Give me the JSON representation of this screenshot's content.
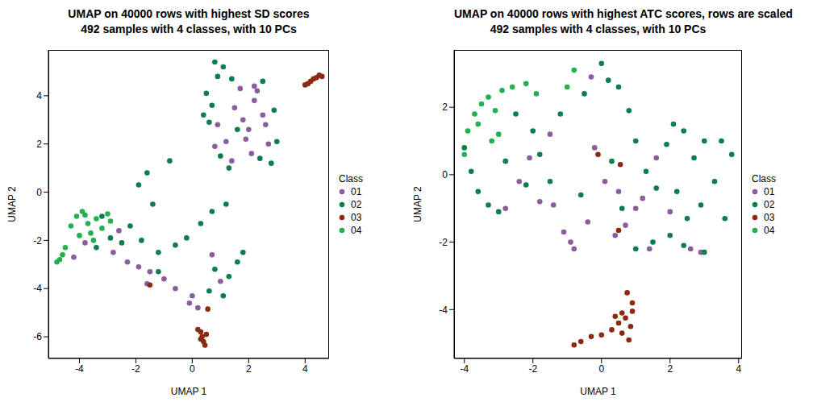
{
  "chart_data": [
    {
      "type": "scatter",
      "title": "UMAP on 40000 rows with highest SD scores",
      "subtitle": "492 samples with 4 classes, with 10 PCs",
      "x_label": "UMAP 1",
      "y_label": "UMAP 2",
      "xlim": [
        -5.1,
        4.85
      ],
      "ylim": [
        -6.9,
        5.9
      ],
      "xticks": [
        -4,
        -2,
        0,
        2,
        4
      ],
      "yticks": [
        -6,
        -4,
        -2,
        0,
        2,
        4
      ],
      "legend": "right",
      "legend_title": "Class",
      "marker": "circle",
      "series": [
        {
          "name": "01",
          "color": "#8B5C9E",
          "x": [
            1.5,
            1.8,
            2.0,
            2.2,
            2.5,
            2.7,
            1.2,
            0.8,
            2.3,
            1.7,
            2.6,
            1.9,
            0.9,
            1.4,
            2.1,
            -4.2,
            -3.8,
            -2.8,
            -2.3,
            -1.9,
            -1.5,
            -1.0,
            -2.6,
            -0.6,
            0.0,
            0.2,
            -0.1,
            0.7,
            -1.6,
            1.0,
            2.2
          ],
          "y": [
            3.5,
            3.0,
            2.6,
            3.8,
            3.2,
            2.0,
            2.1,
            1.9,
            4.2,
            4.3,
            2.8,
            2.2,
            2.8,
            1.3,
            1.6,
            -2.7,
            -2.1,
            -2.5,
            -2.9,
            -3.1,
            -3.3,
            -3.6,
            -1.6,
            -4.0,
            -4.3,
            -4.8,
            -4.6,
            -2.6,
            -3.8,
            -3.7,
            4.4
          ]
        },
        {
          "name": "02",
          "color": "#0A7E4E",
          "x": [
            0.5,
            0.7,
            0.9,
            1.1,
            0.8,
            1.4,
            0.6,
            0.4,
            1.3,
            1.0,
            2.4,
            2.8,
            3.0,
            2.9,
            2.5,
            1.6,
            -0.8,
            -1.6,
            -1.9,
            -1.4,
            -2.9,
            -3.4,
            -2.5,
            -1.8,
            -1.2,
            -0.6,
            -0.2,
            0.3,
            0.7,
            1.2,
            -1.2,
            0.8,
            1.3,
            1.6,
            1.8,
            0.6,
            1.1,
            -3.2,
            -2.2
          ],
          "y": [
            4.1,
            3.6,
            4.8,
            5.2,
            5.4,
            4.7,
            2.9,
            3.2,
            1.0,
            1.5,
            1.4,
            1.2,
            2.1,
            3.4,
            4.6,
            2.6,
            1.3,
            0.8,
            0.3,
            -0.5,
            -1.9,
            -2.3,
            -2.1,
            -2.0,
            -2.5,
            -2.2,
            -1.9,
            -1.3,
            -0.8,
            -0.5,
            -3.3,
            -3.2,
            -3.5,
            -2.9,
            -2.5,
            -4.1,
            -4.3,
            -1.0,
            -1.4
          ]
        },
        {
          "name": "03",
          "color": "#8B2A10",
          "x": [
            4.0,
            4.2,
            4.4,
            4.5,
            4.6,
            4.3,
            4.1,
            0.3,
            0.35,
            0.4,
            0.45,
            0.3,
            0.5,
            0.2,
            0.55,
            -1.5
          ],
          "y": [
            4.45,
            4.6,
            4.75,
            4.85,
            4.8,
            4.7,
            4.5,
            -5.8,
            -6.0,
            -6.2,
            -6.35,
            -6.1,
            -5.9,
            -5.7,
            -4.85,
            -3.85
          ]
        },
        {
          "name": "04",
          "color": "#22B14C",
          "x": [
            -4.8,
            -4.6,
            -4.5,
            -4.3,
            -4.1,
            -3.9,
            -3.7,
            -3.6,
            -3.4,
            -3.2,
            -3.0,
            -3.5,
            -4.0,
            -3.8,
            -2.9,
            -4.7
          ],
          "y": [
            -2.9,
            -2.6,
            -2.3,
            -1.4,
            -1.0,
            -0.8,
            -1.3,
            -1.7,
            -1.1,
            -1.5,
            -0.9,
            -2.0,
            -1.8,
            -0.95,
            -1.2,
            -2.8
          ]
        }
      ]
    },
    {
      "type": "scatter",
      "title": "UMAP on 40000 rows with highest ATC scores, rows are scaled",
      "subtitle": "492 samples with 4 classes, with 10 PCs",
      "x_label": "UMAP 1",
      "y_label": "UMAP 2",
      "xlim": [
        -4.3,
        4.1
      ],
      "ylim": [
        -5.45,
        3.7
      ],
      "xticks": [
        -4,
        -2,
        0,
        2,
        4
      ],
      "yticks": [
        -4,
        -2,
        0,
        2
      ],
      "legend": "right",
      "legend_title": "Class",
      "marker": "circle",
      "series": [
        {
          "name": "01",
          "color": "#8B5C9E",
          "x": [
            -2.8,
            -2.4,
            -1.8,
            -1.4,
            -1.1,
            -0.9,
            -0.8,
            -0.4,
            -0.2,
            0.1,
            0.5,
            0.7,
            1.0,
            1.2,
            1.6,
            2.0,
            2.6,
            2.9,
            -1.5,
            -0.3,
            0.4,
            -2.1,
            1.4
          ],
          "y": [
            -1.0,
            -0.2,
            -0.8,
            -0.9,
            -1.7,
            -2.0,
            -2.2,
            -1.4,
            0.8,
            -0.2,
            -0.5,
            -1.5,
            -1.0,
            -0.7,
            0.5,
            -1.1,
            -2.2,
            -2.3,
            1.2,
            2.9,
            -1.8,
            0.5,
            -2.2
          ]
        },
        {
          "name": "02",
          "color": "#0A7E4E",
          "x": [
            -4.0,
            -3.8,
            -3.6,
            -3.3,
            -3.0,
            -2.8,
            -2.5,
            -2.0,
            -1.8,
            -1.5,
            -1.2,
            -0.5,
            0.0,
            0.2,
            0.5,
            0.8,
            1.0,
            1.3,
            1.6,
            1.9,
            2.1,
            2.4,
            2.7,
            3.0,
            3.5,
            3.8,
            3.3,
            2.9,
            2.5,
            2.0,
            1.5,
            1.0,
            3.0,
            2.4,
            0.3,
            -0.6,
            -2.2,
            0.6,
            3.6,
            2.2
          ],
          "y": [
            0.8,
            0.1,
            -0.5,
            -0.9,
            -1.1,
            0.4,
            1.8,
            1.3,
            0.6,
            -0.2,
            1.8,
            2.4,
            3.3,
            2.8,
            2.6,
            1.9,
            1.0,
            0.1,
            -0.4,
            0.9,
            1.5,
            1.3,
            0.5,
            1.0,
            1.0,
            0.6,
            -0.2,
            -0.9,
            -1.3,
            -1.8,
            -2.0,
            -2.2,
            -2.3,
            -2.1,
            0.4,
            -0.6,
            -0.3,
            -1.0,
            -1.3,
            -0.5
          ]
        },
        {
          "name": "03",
          "color": "#8B2A10",
          "x": [
            -0.8,
            -0.6,
            -0.3,
            0.0,
            0.3,
            0.5,
            0.7,
            0.85,
            0.8,
            0.6,
            0.9,
            0.75,
            0.6,
            0.4,
            -0.1,
            0.55,
            0.5,
            0.9
          ],
          "y": [
            -5.05,
            -4.95,
            -4.8,
            -4.75,
            -4.6,
            -4.4,
            -4.25,
            -4.5,
            -4.9,
            -4.7,
            -3.8,
            -3.5,
            -4.1,
            -4.2,
            0.6,
            0.3,
            -1.65,
            -4.05
          ]
        },
        {
          "name": "04",
          "color": "#22B14C",
          "x": [
            -3.9,
            -3.7,
            -3.5,
            -3.3,
            -3.1,
            -2.9,
            -2.6,
            -3.6,
            -3.0,
            -2.2,
            -1.9,
            -3.2,
            -0.8,
            -1.0,
            -4.0
          ],
          "y": [
            1.3,
            1.8,
            2.1,
            2.3,
            1.9,
            2.5,
            2.6,
            1.5,
            1.2,
            2.7,
            2.4,
            1.0,
            3.1,
            2.6,
            0.6
          ]
        }
      ]
    }
  ]
}
